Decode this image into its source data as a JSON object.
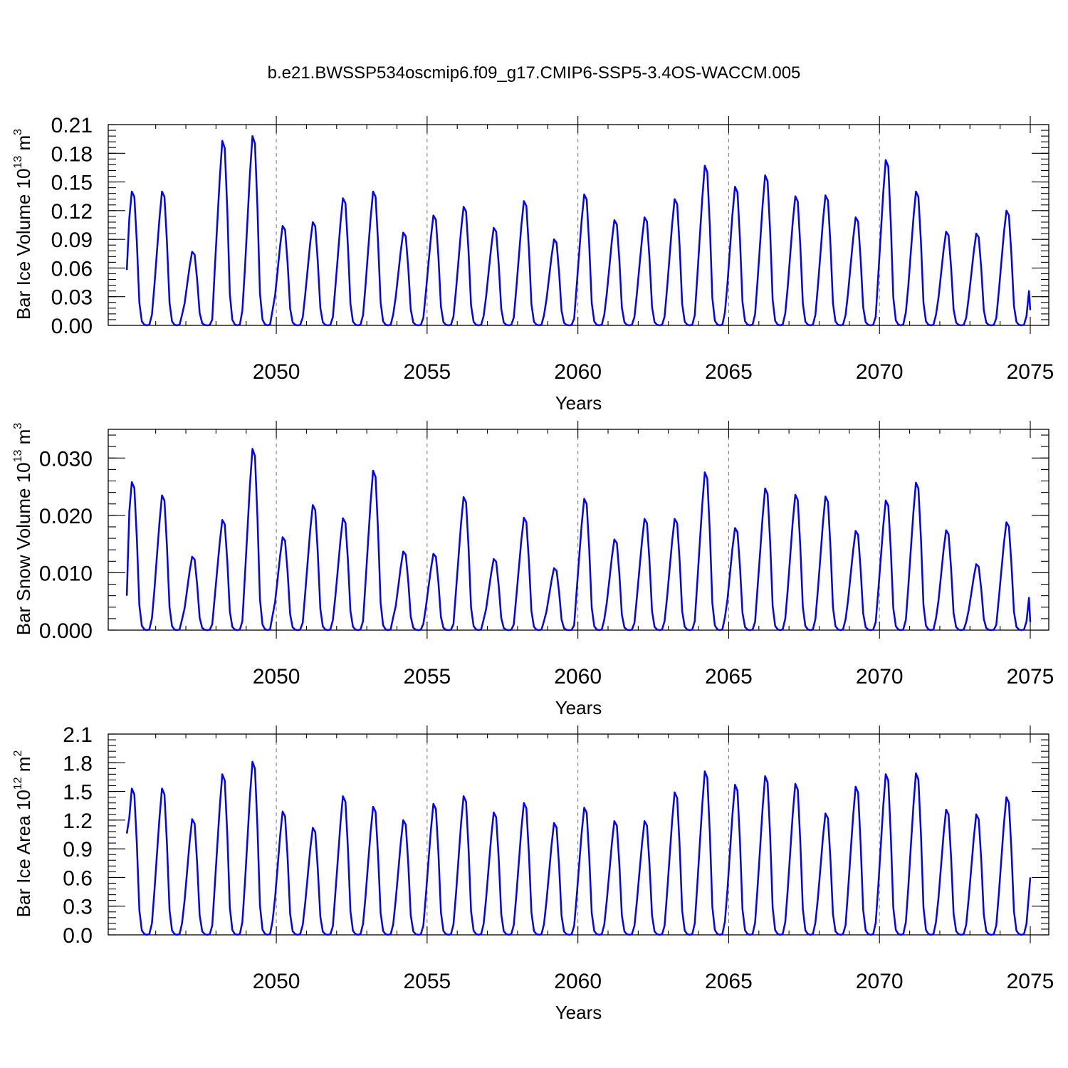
{
  "title": "b.e21.BWSSP534oscmip6.f09_g17.CMIP6-SSP5-3.4OS-WACCM.005",
  "colors": {
    "series": "#0000ff",
    "axis": "#000000",
    "grid": "#777777"
  },
  "chart_data": [
    {
      "type": "line",
      "ylabel": {
        "main": "Bar Ice Volume 10",
        "exp": "13",
        "unit": " m",
        "unit_exp": "3"
      },
      "xlabel": "Years",
      "xlim": [
        2045.04,
        2075.0
      ],
      "ylim": [
        0,
        0.21
      ],
      "yticks": [
        0.0,
        0.03,
        0.06,
        0.09,
        0.12,
        0.15,
        0.18,
        0.21
      ],
      "ytick_labels": [
        "0.00",
        "0.03",
        "0.06",
        "0.09",
        "0.12",
        "0.15",
        "0.18",
        "0.21"
      ],
      "xticks": [
        2050,
        2055,
        2060,
        2065,
        2070,
        2075
      ],
      "xtick_labels": [
        "2050",
        "2055",
        "2060",
        "2065",
        "2070",
        "2075"
      ],
      "series": [
        {
          "name": "Bar Ice Volume",
          "peaks": [
            0.14,
            0.14,
            0.077,
            0.193,
            0.198,
            0.104,
            0.108,
            0.133,
            0.14,
            0.097,
            0.115,
            0.124,
            0.102,
            0.13,
            0.09,
            0.137,
            0.11,
            0.113,
            0.132,
            0.167,
            0.145,
            0.157,
            0.135,
            0.136,
            0.113,
            0.173,
            0.14,
            0.098,
            0.096,
            0.12
          ],
          "start_value": 0.058,
          "end_value": 0.016
        }
      ]
    },
    {
      "type": "line",
      "ylabel": {
        "main": "Bar Snow Volume 10",
        "exp": "13",
        "unit": " m",
        "unit_exp": "3"
      },
      "xlabel": "Years",
      "xlim": [
        2045.04,
        2075.0
      ],
      "ylim": [
        0,
        0.035
      ],
      "yticks": [
        0.0,
        0.01,
        0.02,
        0.03
      ],
      "ytick_labels": [
        "0.000",
        "0.010",
        "0.020",
        "0.030"
      ],
      "xticks": [
        2050,
        2055,
        2060,
        2065,
        2070,
        2075
      ],
      "xtick_labels": [
        "2050",
        "2055",
        "2060",
        "2065",
        "2070",
        "2075"
      ],
      "series": [
        {
          "name": "Bar Snow Volume",
          "peaks": [
            0.0258,
            0.0235,
            0.0128,
            0.0192,
            0.0316,
            0.0162,
            0.0218,
            0.0195,
            0.0278,
            0.0137,
            0.0133,
            0.0232,
            0.0124,
            0.0196,
            0.0108,
            0.0229,
            0.0158,
            0.0194,
            0.0194,
            0.0275,
            0.0178,
            0.0247,
            0.0236,
            0.0233,
            0.0173,
            0.0226,
            0.0257,
            0.0174,
            0.0115,
            0.0188
          ],
          "start_value": 0.006,
          "end_value": 0.0014
        }
      ]
    },
    {
      "type": "line",
      "ylabel": {
        "main": "Bar Ice Area 10",
        "exp": "12",
        "unit": " m",
        "unit_exp": "2"
      },
      "xlabel": "Years",
      "xlim": [
        2045.04,
        2075.0
      ],
      "ylim": [
        0,
        2.1
      ],
      "yticks": [
        0.0,
        0.3,
        0.6,
        0.9,
        1.2,
        1.5,
        1.8,
        2.1
      ],
      "ytick_labels": [
        "0.0",
        "0.3",
        "0.6",
        "0.9",
        "1.2",
        "1.5",
        "1.8",
        "2.1"
      ],
      "xticks": [
        2050,
        2055,
        2060,
        2065,
        2070,
        2075
      ],
      "xtick_labels": [
        "2050",
        "2055",
        "2060",
        "2065",
        "2070",
        "2075"
      ],
      "series": [
        {
          "name": "Bar Ice Area",
          "peaks": [
            1.53,
            1.53,
            1.21,
            1.68,
            1.81,
            1.29,
            1.12,
            1.45,
            1.34,
            1.2,
            1.37,
            1.45,
            1.28,
            1.38,
            1.17,
            1.33,
            1.19,
            1.19,
            1.49,
            1.71,
            1.57,
            1.66,
            1.58,
            1.27,
            1.55,
            1.68,
            1.69,
            1.31,
            1.26,
            1.44
          ],
          "start_value": 1.06,
          "end_value": 0.6
        }
      ]
    }
  ]
}
